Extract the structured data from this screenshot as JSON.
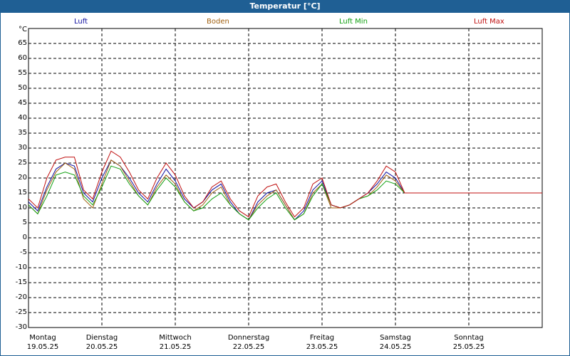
{
  "window": {
    "title": "Temperatur [°C]"
  },
  "chart_data": {
    "type": "line",
    "title": "Temperatur [°C]",
    "ylabel": "°C",
    "ylim": [
      -30,
      70
    ],
    "yticks": [
      65,
      60,
      55,
      50,
      45,
      40,
      35,
      30,
      25,
      20,
      15,
      10,
      5,
      0,
      -5,
      -10,
      -15,
      -20,
      -25,
      -30
    ],
    "ytick_labels": [
      "65",
      "60",
      "55",
      "50",
      "45",
      "40",
      "35",
      "30",
      "25",
      "20",
      "15",
      "10",
      "5",
      "0",
      "-5",
      "-10",
      "-15",
      "-20",
      "-25",
      "-30"
    ],
    "days": [
      {
        "weekday": "Montag",
        "date": "19.05.25"
      },
      {
        "weekday": "Dienstag",
        "date": "20.05.25"
      },
      {
        "weekday": "Mittwoch",
        "date": "21.05.25"
      },
      {
        "weekday": "Donnerstag",
        "date": "22.05.25"
      },
      {
        "weekday": "Freitag",
        "date": "23.05.25"
      },
      {
        "weekday": "Samstag",
        "date": "24.05.25"
      },
      {
        "weekday": "Sonntag",
        "date": "25.05.25"
      }
    ],
    "x_hours": [
      0,
      3,
      6,
      9,
      12,
      15,
      18,
      21,
      24,
      27,
      30,
      33,
      36,
      39,
      42,
      45,
      48,
      51,
      54,
      57,
      60,
      63,
      66,
      69,
      72,
      75,
      78,
      81,
      84,
      87,
      90,
      93,
      96,
      99,
      102,
      105,
      108,
      111,
      114,
      117,
      120,
      123,
      126,
      129,
      132,
      135,
      138,
      141,
      144,
      147,
      150,
      153,
      156,
      159,
      162,
      165,
      168
    ],
    "series": [
      {
        "name": "Luft",
        "color": "#1010a0",
        "values": [
          12,
          9,
          17,
          23,
          25,
          24,
          15,
          12,
          20,
          26,
          24,
          20,
          15,
          12,
          18,
          23,
          19,
          13,
          10,
          12,
          16,
          18,
          12,
          8,
          6,
          12,
          15,
          16,
          11,
          6,
          9,
          16,
          19,
          11,
          10,
          11,
          13,
          15,
          18,
          22,
          20,
          15,
          15,
          15,
          15,
          15,
          15,
          15,
          15,
          15,
          15,
          15,
          15,
          15,
          15,
          15,
          15
        ]
      },
      {
        "name": "Boden",
        "color": "#a06010",
        "values": [
          11,
          8,
          16,
          22,
          25,
          23,
          13,
          10,
          18,
          26,
          24,
          19,
          14,
          11,
          17,
          21,
          18,
          12,
          9,
          11,
          15,
          17,
          11,
          8,
          6,
          11,
          14,
          16,
          11,
          6,
          8,
          15,
          18,
          10,
          10,
          11,
          13,
          14,
          17,
          21,
          19,
          15,
          15,
          15,
          15,
          15,
          15,
          15,
          15,
          15,
          15,
          15,
          15,
          15,
          15,
          15,
          15
        ]
      },
      {
        "name": "Luft Min",
        "color": "#10a010",
        "values": [
          11,
          8,
          14,
          21,
          22,
          21,
          14,
          11,
          17,
          24,
          23,
          18,
          14,
          11,
          16,
          20,
          17,
          12,
          9,
          10,
          13,
          15,
          11,
          8,
          6,
          10,
          13,
          15,
          10,
          6,
          8,
          14,
          18,
          11,
          10,
          11,
          13,
          14,
          16,
          19,
          18,
          15,
          15,
          15,
          15,
          15,
          15,
          15,
          15,
          15,
          15,
          15,
          15,
          15,
          15,
          15,
          15
        ]
      },
      {
        "name": "Luft Max",
        "color": "#c01010",
        "values": [
          13,
          10,
          20,
          26,
          27,
          27,
          16,
          13,
          22,
          29,
          27,
          22,
          16,
          13,
          20,
          25,
          21,
          14,
          10,
          12,
          17,
          19,
          13,
          9,
          7,
          14,
          17,
          18,
          12,
          7,
          10,
          18,
          20,
          11,
          10,
          11,
          13,
          15,
          19,
          24,
          22,
          15,
          15,
          15,
          15,
          15,
          15,
          15,
          15,
          15,
          15,
          15,
          15,
          15,
          15,
          15,
          15
        ]
      }
    ]
  }
}
